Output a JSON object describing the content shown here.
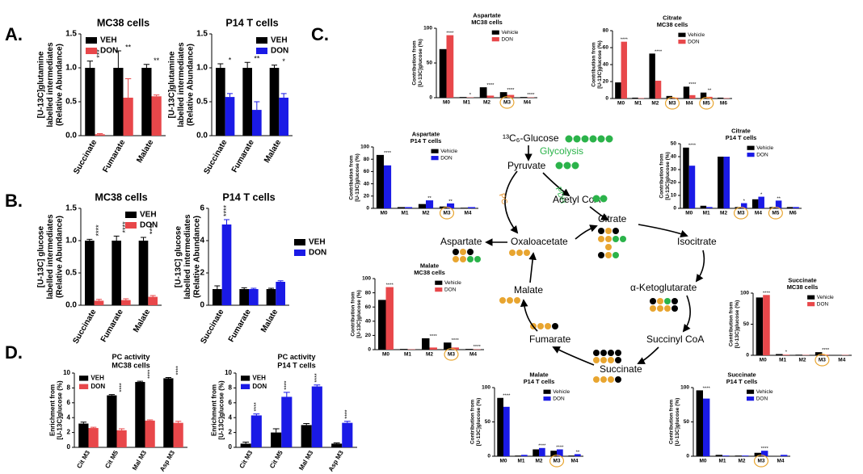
{
  "chart_data": [
    {
      "type": "bar",
      "panel_label": "A.",
      "title": "MC38 cells",
      "ylabel": [
        "[U-13C]glutamine",
        "labelled intermediates",
        "(Relative Abundance)"
      ],
      "categories": [
        "Succinate",
        "Fumarate",
        "Malate"
      ],
      "series": [
        {
          "name": "VEH",
          "color": "#000000",
          "values": [
            1.0,
            1.0,
            1.0
          ],
          "errors": [
            0.1,
            0.25,
            0.05
          ]
        },
        {
          "name": "DON",
          "color": "#e8474a",
          "values": [
            0.02,
            0.56,
            0.58
          ],
          "errors": [
            0.01,
            0.28,
            0.02
          ]
        }
      ],
      "significance": [
        "***",
        "**",
        "**"
      ],
      "ylim": [
        0,
        1.5
      ],
      "yticks": [
        {
          "value": 0,
          "label": "0.0"
        },
        0.5,
        {
          "value": 1,
          "label": "1.0"
        },
        1.5
      ],
      "legend": "upper left",
      "rotate_xticks": true
    },
    {
      "type": "bar",
      "title": "P14 T cells",
      "ylabel": [
        "[U-13C]glutamine",
        "labelled intermediates",
        "(Relative Abundance)"
      ],
      "categories": [
        "Succinate",
        "Fumarate",
        "Malate"
      ],
      "series": [
        {
          "name": "VEH",
          "color": "#000000",
          "values": [
            1.0,
            1.0,
            1.0
          ],
          "errors": [
            0.06,
            0.08,
            0.04
          ]
        },
        {
          "name": "DON",
          "color": "#1a1ae6",
          "values": [
            0.57,
            0.38,
            0.56
          ],
          "errors": [
            0.05,
            0.12,
            0.06
          ]
        }
      ],
      "significance": [
        "*",
        "**",
        "*"
      ],
      "ylim": [
        0,
        1.5
      ],
      "yticks": [
        {
          "value": 0,
          "label": "0.0"
        },
        0.5,
        {
          "value": 1,
          "label": "1.0"
        },
        1.5
      ],
      "legend": "upper right",
      "rotate_xticks": true
    },
    {
      "type": "bar",
      "panel_label": "B.",
      "title": "MC38 cells",
      "ylabel": [
        "[U-13C] glucose",
        "labelled intermediates",
        "(Relative Abundance)"
      ],
      "categories": [
        "Succinate",
        "Fumarate",
        "Malate"
      ],
      "series": [
        {
          "name": "VEH",
          "color": "#000000",
          "values": [
            1.0,
            1.0,
            1.0
          ],
          "errors": [
            0.02,
            0.07,
            0.05
          ]
        },
        {
          "name": "DON",
          "color": "#e8474a",
          "values": [
            0.07,
            0.08,
            0.13
          ],
          "errors": [
            0.02,
            0.02,
            0.02
          ]
        }
      ],
      "significance": [
        "****",
        "****",
        "****"
      ],
      "ylim": [
        0,
        1.5
      ],
      "yticks": [
        {
          "value": 0,
          "label": "0.0"
        },
        0.5,
        {
          "value": 1,
          "label": "1.0"
        },
        1.5
      ],
      "legend": "upper right",
      "rotate_xticks": true
    },
    {
      "type": "bar",
      "title": "P14 T cells",
      "ylabel": [
        "[U-13C] glucose",
        "labelled intermediates",
        "(Relative Abundance)"
      ],
      "categories": [
        "Succinate",
        "Fumarate",
        "Malate"
      ],
      "series": [
        {
          "name": "VEH",
          "color": "#000000",
          "values": [
            1.0,
            1.0,
            1.0
          ],
          "errors": [
            0.2,
            0.08,
            0.05
          ]
        },
        {
          "name": "DON",
          "color": "#1a1ae6",
          "values": [
            5.0,
            1.0,
            1.45
          ],
          "errors": [
            0.3,
            0.05,
            0.06
          ]
        }
      ],
      "significance": [
        "****",
        null,
        null
      ],
      "ylim": [
        0,
        6
      ],
      "yticks": [
        0,
        2,
        4,
        6
      ],
      "legend": "right",
      "rotate_xticks": true
    },
    {
      "type": "bar",
      "panel_label": "D.",
      "title": "PC activity",
      "subtitle": "MC38 cells",
      "ylabel": [
        "Enrichment from",
        "[U-13C]glucose (%)"
      ],
      "categories": [
        "Cit M3",
        "Cit M5",
        "Mal M3",
        "Asp M3"
      ],
      "series": [
        {
          "name": "VEH",
          "color": "#000000",
          "values": [
            3.2,
            7.0,
            8.8,
            9.3
          ],
          "errors": [
            0.2,
            0.1,
            0.1,
            0.1
          ]
        },
        {
          "name": "DON",
          "color": "#e8474a",
          "values": [
            2.6,
            2.3,
            3.6,
            3.3
          ],
          "errors": [
            0.1,
            0.2,
            0.1,
            0.2
          ]
        }
      ],
      "significance": [
        null,
        "****",
        "****",
        "****"
      ],
      "ylim": [
        0,
        10
      ],
      "yticks": [
        0,
        2,
        4,
        6,
        8,
        10
      ],
      "legend": "upper left",
      "rotate_xticks": true
    },
    {
      "type": "bar",
      "title": "PC activity",
      "subtitle": "P14 T cells",
      "ylabel": [
        "Enrichment from",
        "[U-13C]glucose (%)"
      ],
      "categories": [
        "Cit M3",
        "Cit M5",
        "Mal M3",
        "Asp M3"
      ],
      "series": [
        {
          "name": "VEH",
          "color": "#000000",
          "values": [
            0.5,
            2.0,
            3.0,
            0.5
          ],
          "errors": [
            0.2,
            0.5,
            0.2,
            0.1
          ]
        },
        {
          "name": "DON",
          "color": "#1a1ae6",
          "values": [
            4.3,
            6.8,
            8.2,
            3.3
          ],
          "errors": [
            0.2,
            0.6,
            0.2,
            0.2
          ]
        }
      ],
      "significance": [
        "****",
        "****",
        "****",
        "****"
      ],
      "ylim": [
        0,
        10
      ],
      "yticks": [
        0,
        2,
        4,
        6,
        8,
        10
      ],
      "legend": "upper left",
      "rotate_xticks": true
    },
    {
      "type": "bar",
      "panel_label": "C.",
      "title": "Aspartate",
      "subtitle": "MC38 cells",
      "ylabel": [
        "Contribution from",
        "[U-13C]glucose (%)"
      ],
      "categories": [
        "M0",
        "M1",
        "M2",
        "M3",
        "M4"
      ],
      "series": [
        {
          "name": "Vehicle",
          "color": "#000000",
          "values": [
            70,
            1,
            15,
            8,
            1
          ]
        },
        {
          "name": "DON",
          "color": "#e8474a",
          "values": [
            90,
            0.5,
            3,
            4,
            0.5
          ]
        }
      ],
      "significance": [
        "****",
        "*",
        "****",
        "****",
        "****"
      ],
      "ylim": [
        0,
        100
      ],
      "yticks": [
        0,
        50,
        100
      ],
      "legend": "upper right",
      "highlight": [
        3
      ]
    },
    {
      "type": "bar",
      "title": "Citrate",
      "subtitle": "MC38 cells",
      "ylabel": [
        "Contribution from",
        "[U-13C]glucose (%)"
      ],
      "categories": [
        "M0",
        "M1",
        "M2",
        "M3",
        "M4",
        "M5",
        "M6"
      ],
      "series": [
        {
          "name": "Vehicle",
          "color": "#000000",
          "values": [
            19,
            1,
            53,
            3,
            14,
            7,
            1
          ]
        },
        {
          "name": "DON",
          "color": "#e8474a",
          "values": [
            67,
            0.5,
            21,
            1,
            4,
            2,
            0.5
          ]
        }
      ],
      "significance": [
        "****",
        null,
        "****",
        null,
        "****",
        "**",
        null
      ],
      "ylim": [
        0,
        80
      ],
      "yticks": [
        0,
        20,
        40,
        60,
        80
      ],
      "legend": "upper right",
      "highlight": [
        3,
        5
      ]
    },
    {
      "type": "bar",
      "title": "Aspartate",
      "subtitle": "P14 T cells",
      "ylabel": [
        "Contribution from",
        "[U-13C]glucose (%)"
      ],
      "categories": [
        "M0",
        "M1",
        "M2",
        "M3",
        "M4"
      ],
      "series": [
        {
          "name": "Vehicle",
          "color": "#000000",
          "values": [
            87,
            2,
            7,
            3,
            1
          ]
        },
        {
          "name": "DON",
          "color": "#1a1ae6",
          "values": [
            70,
            2,
            13,
            8,
            2
          ]
        }
      ],
      "significance": [
        "****",
        null,
        "**",
        "**",
        null
      ],
      "ylim": [
        0,
        100
      ],
      "yticks": [
        0,
        20,
        40,
        60,
        80,
        100
      ],
      "legend": "upper right",
      "highlight": [
        3
      ]
    },
    {
      "type": "bar",
      "title": "Citrate",
      "subtitle": "P14 T cells",
      "ylabel": [
        "Contribution from",
        "[U-13C]glucose (%)"
      ],
      "categories": [
        "M0",
        "M1",
        "M2",
        "M3",
        "M4",
        "M5",
        "M6"
      ],
      "series": [
        {
          "name": "Vehicle",
          "color": "#000000",
          "values": [
            47,
            2,
            40,
            1,
            7,
            1,
            1
          ]
        },
        {
          "name": "DON",
          "color": "#1a1ae6",
          "values": [
            33,
            1,
            40,
            4,
            9,
            6,
            1
          ]
        }
      ],
      "significance": [
        "****",
        null,
        null,
        "*",
        "*",
        "**",
        null
      ],
      "ylim": [
        0,
        50
      ],
      "yticks": [
        0,
        10,
        20,
        30,
        40,
        50
      ],
      "legend": "upper right",
      "highlight": [
        3,
        5
      ]
    },
    {
      "type": "bar",
      "title": "Malate",
      "subtitle": "MC38 cells",
      "ylabel": [
        "Contribution from",
        "[U-13C]glucose (%)"
      ],
      "categories": [
        "M0",
        "M1",
        "M2",
        "M3",
        "M4"
      ],
      "series": [
        {
          "name": "Vehicle",
          "color": "#000000",
          "values": [
            70,
            1,
            16,
            10,
            1
          ]
        },
        {
          "name": "DON",
          "color": "#e8474a",
          "values": [
            88,
            0.5,
            3,
            3,
            0.5
          ]
        }
      ],
      "significance": [
        "****",
        null,
        "****",
        "****",
        "****"
      ],
      "ylim": [
        0,
        100
      ],
      "yticks": [
        0,
        20,
        40,
        60,
        80,
        100
      ],
      "legend": "upper right",
      "highlight": [
        3
      ]
    },
    {
      "type": "bar",
      "title": "Succinate",
      "subtitle": "MC38 cells",
      "ylabel": [
        "Contribution from",
        "[U-13C]glucose (%)"
      ],
      "categories": [
        "M0",
        "M1",
        "M2",
        "M3",
        "M4"
      ],
      "series": [
        {
          "name": "Vehicle",
          "color": "#000000",
          "values": [
            93,
            2,
            1,
            5,
            0.5
          ]
        },
        {
          "name": "DON",
          "color": "#e8474a",
          "values": [
            97,
            1,
            0.5,
            1,
            0.5
          ]
        }
      ],
      "significance": [
        "****",
        "*",
        null,
        "****",
        null
      ],
      "ylim": [
        0,
        100
      ],
      "yticks": [
        0,
        50,
        100
      ],
      "legend": "upper right",
      "highlight": [
        3
      ]
    },
    {
      "type": "bar",
      "title": "Malate",
      "subtitle": "P14 T cells",
      "ylabel": [
        "Contribution from",
        "[U-13C]glucose (%)"
      ],
      "categories": [
        "M0",
        "M1",
        "M2",
        "M3",
        "M4"
      ],
      "series": [
        {
          "name": "Vehicle",
          "color": "#000000",
          "values": [
            85,
            1,
            10,
            8,
            1
          ]
        },
        {
          "name": "DON",
          "color": "#1a1ae6",
          "values": [
            72,
            2,
            12,
            10,
            3
          ]
        }
      ],
      "significance": [
        "****",
        null,
        "****",
        "****",
        "**"
      ],
      "ylim": [
        0,
        100
      ],
      "yticks": [
        0,
        50,
        100
      ],
      "legend": "upper right",
      "highlight": [
        3
      ]
    },
    {
      "type": "bar",
      "title": "Succinate",
      "subtitle": "P14 T cells",
      "ylabel": [
        "Contribution from",
        "[U-13C]glucose (%)"
      ],
      "categories": [
        "M0",
        "M1",
        "M2",
        "M3",
        "M4"
      ],
      "series": [
        {
          "name": "Vehicle",
          "color": "#000000",
          "values": [
            96,
            2,
            1,
            5,
            0.5
          ]
        },
        {
          "name": "DON",
          "color": "#1a1ae6",
          "values": [
            84,
            1,
            1,
            8,
            2
          ]
        }
      ],
      "significance": [
        "****",
        null,
        null,
        "****",
        null
      ],
      "ylim": [
        0,
        100
      ],
      "yticks": [
        0,
        50,
        100
      ],
      "legend": "upper right",
      "highlight": [
        3
      ]
    }
  ],
  "diagram": {
    "labels": [
      "¹³C₆-Glucose",
      "Glycolysis",
      "Pyruvate",
      "PDH",
      "PC",
      "Acetyl CoA",
      "Citrate",
      "Isocitrate",
      "α-Ketoglutarate",
      "Succinyl CoA",
      "Succinate",
      "Fumarate",
      "Malate",
      "Oxaloacetate",
      "Aspartate"
    ]
  }
}
